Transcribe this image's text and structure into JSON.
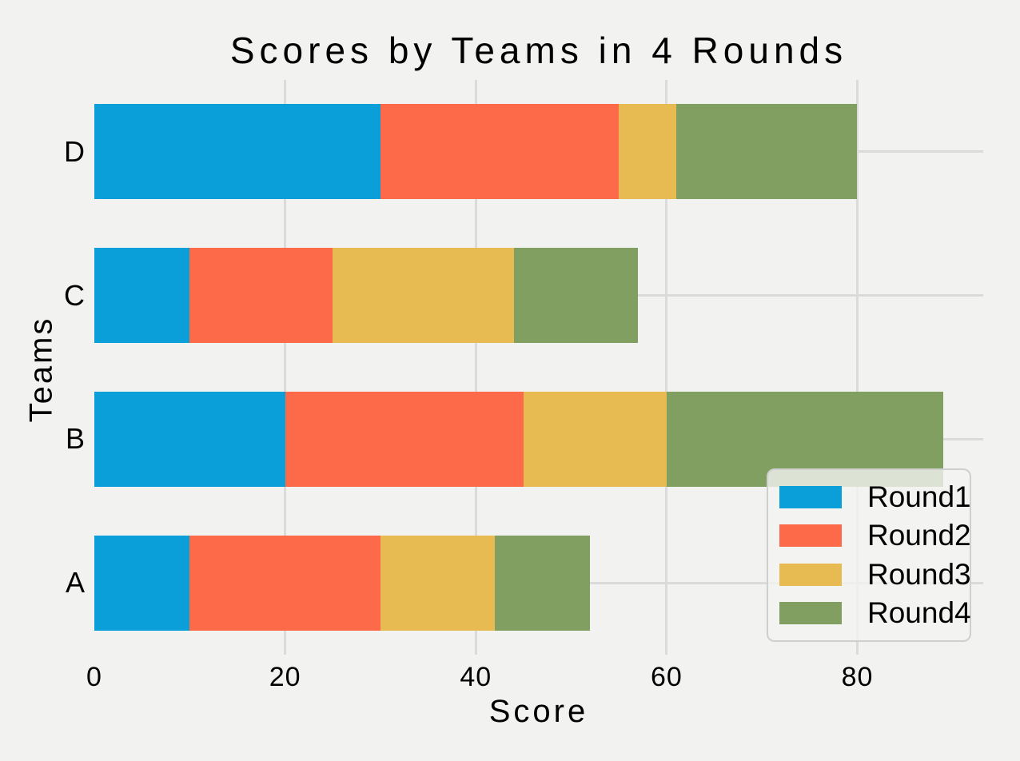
{
  "title": "Scores by Teams in 4 Rounds",
  "colors": {
    "background": "#F2F2F1",
    "grid": "#DBDBDB",
    "text": "#000000",
    "legend_bg": "rgba(242,242,241,0.8)",
    "legend_border": "#CFCFCF"
  },
  "chart_data": {
    "type": "bar",
    "orientation": "horizontal",
    "stacked": true,
    "title": "Scores by Teams in 4 Rounds",
    "xlabel": "Score",
    "ylabel": "Teams",
    "categories": [
      "A",
      "B",
      "C",
      "D"
    ],
    "categories_display_order_top_to_bottom": [
      "D",
      "C",
      "B",
      "A"
    ],
    "series": [
      {
        "name": "Round1",
        "color": "#0A9FD9",
        "values": [
          10,
          20,
          10,
          30
        ]
      },
      {
        "name": "Round2",
        "color": "#FC6A4A",
        "values": [
          20,
          25,
          15,
          25
        ]
      },
      {
        "name": "Round3",
        "color": "#E8BA52",
        "values": [
          12,
          15,
          19,
          6
        ]
      },
      {
        "name": "Round4",
        "color": "#819F60",
        "values": [
          10,
          29,
          13,
          19
        ]
      }
    ],
    "stacked_totals": [
      52,
      89,
      57,
      80
    ],
    "x_ticks": [
      "0",
      "20",
      "40",
      "60",
      "80"
    ],
    "x_tick_values": [
      0,
      20,
      40,
      60,
      80
    ],
    "xlim": [
      0,
      93.2
    ],
    "grid": true,
    "legend_position": "lower right",
    "legend_entries": [
      "Round1",
      "Round2",
      "Round3",
      "Round4"
    ]
  }
}
